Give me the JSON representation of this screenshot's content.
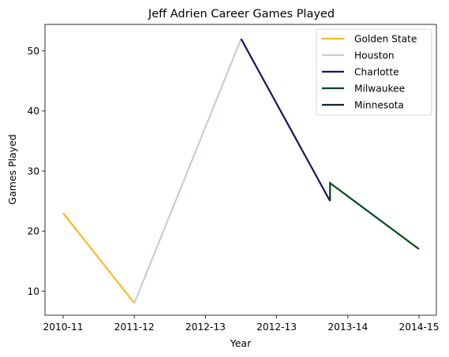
{
  "chart_data": {
    "type": "line",
    "title": "Jeff Adrien Career Games Played",
    "xlabel": "Year",
    "ylabel": "Games Played",
    "categories": [
      "2010-11",
      "2011-12",
      "2012-13",
      "2012-13",
      "2013-14",
      "2014-15"
    ],
    "ylim": [
      6,
      54.4
    ],
    "yticks": [
      10,
      20,
      30,
      40,
      50
    ],
    "grid": false,
    "legend_position": "top-right",
    "series": [
      {
        "name": "Golden State",
        "color": "#FDB927",
        "points": [
          [
            0,
            23
          ],
          [
            1,
            8
          ]
        ]
      },
      {
        "name": "Houston",
        "color": "#C4CED4",
        "points": [
          [
            1,
            8
          ],
          [
            2.5,
            52
          ]
        ]
      },
      {
        "name": "Charlotte",
        "color": "#1D1160",
        "points": [
          [
            2.5,
            52
          ],
          [
            3.75,
            25
          ]
        ]
      },
      {
        "name": "Milwaukee",
        "color": "#00471B",
        "points": [
          [
            3.75,
            25
          ],
          [
            3.75,
            28
          ],
          [
            5,
            17
          ]
        ]
      },
      {
        "name": "Minnesota",
        "color": "#0C2340",
        "points": []
      }
    ]
  }
}
